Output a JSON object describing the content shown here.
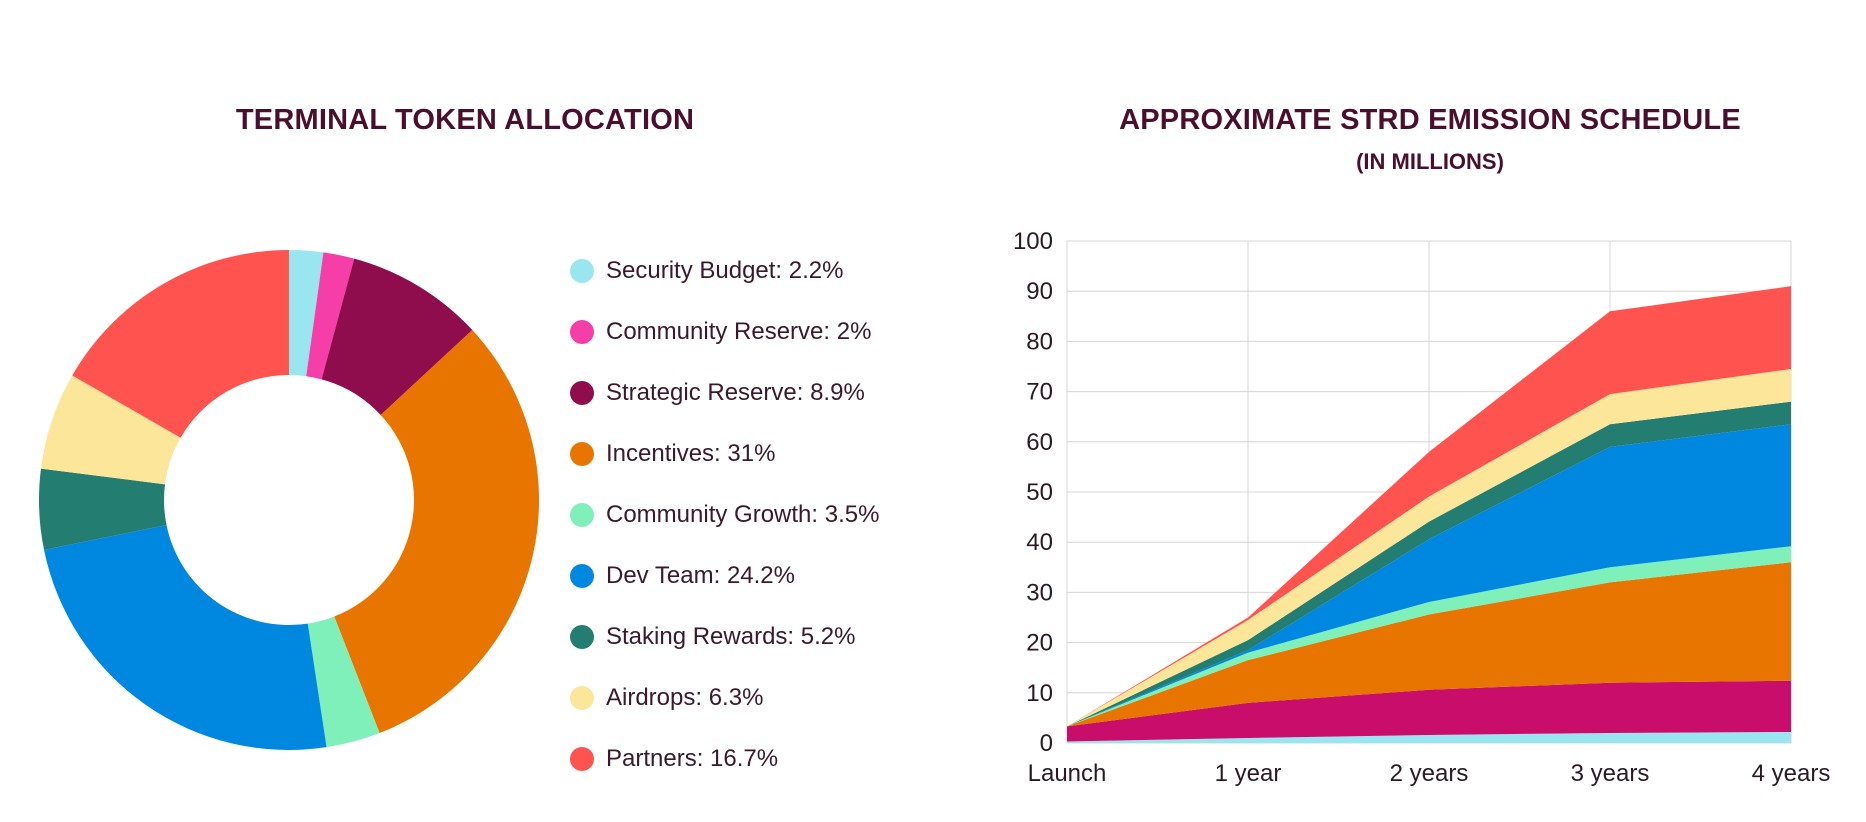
{
  "chart_data": [
    {
      "type": "pie",
      "title": "TERMINAL TOKEN ALLOCATION",
      "donut": true,
      "slices": [
        {
          "label": "Security Budget: 2.2%",
          "name": "Security Budget",
          "value": 2.2,
          "color": "#99e6f0"
        },
        {
          "label": "Community Reserve: 2%",
          "name": "Community Reserve",
          "value": 2,
          "color": "#f53ea8"
        },
        {
          "label": "Strategic Reserve: 8.9%",
          "name": "Strategic Reserve",
          "value": 8.9,
          "color": "#8f0d4d"
        },
        {
          "label": "Incentives: 31%",
          "name": "Incentives",
          "value": 31,
          "color": "#e87500"
        },
        {
          "label": "Community Growth: 3.5%",
          "name": "Community Growth",
          "value": 3.5,
          "color": "#7ff0b9"
        },
        {
          "label": "Dev Team: 24.2%",
          "name": "Dev Team",
          "value": 24.2,
          "color": "#0088e0"
        },
        {
          "label": "Staking Rewards: 5.2%",
          "name": "Staking Rewards",
          "value": 5.2,
          "color": "#247d71"
        },
        {
          "label": "Airdrops: 6.3%",
          "name": "Airdrops",
          "value": 6.3,
          "color": "#fce699"
        },
        {
          "label": "Partners: 16.7%",
          "name": "Partners",
          "value": 16.7,
          "color": "#ff5350"
        }
      ]
    },
    {
      "type": "area",
      "stacked": true,
      "title": "APPROXIMATE STRD EMISSION SCHEDULE",
      "subtitle": "(IN MILLIONS)",
      "categories": [
        "Launch",
        "1 year",
        "2 years",
        "3 years",
        "4 years"
      ],
      "yticks": [
        "0",
        "10",
        "20",
        "30",
        "40",
        "50",
        "60",
        "70",
        "80",
        "90",
        "100"
      ],
      "ylim": [
        0,
        100
      ],
      "grid": true,
      "series": [
        {
          "name": "Security Budget",
          "color": "#99e6f0",
          "values": [
            0.3,
            1.0,
            1.6,
            2.0,
            2.2
          ]
        },
        {
          "name": "Strategic Reserve",
          "color": "#c90d6a",
          "values": [
            3.0,
            7.0,
            9.0,
            10.0,
            10.2
          ]
        },
        {
          "name": "Incentives",
          "color": "#e87500",
          "values": [
            0,
            8.5,
            15,
            20,
            23.6
          ]
        },
        {
          "name": "Community Growth",
          "color": "#7ff0b9",
          "values": [
            0,
            1.5,
            2.5,
            3.0,
            3.2
          ]
        },
        {
          "name": "Dev Team",
          "color": "#0088e0",
          "values": [
            0,
            0.5,
            12.5,
            24,
            24.3
          ]
        },
        {
          "name": "Staking Rewards",
          "color": "#247d71",
          "values": [
            0,
            2.0,
            3.5,
            4.5,
            4.5
          ]
        },
        {
          "name": "Airdrops",
          "color": "#fce699",
          "values": [
            0,
            4.0,
            5.0,
            6.0,
            6.5
          ]
        },
        {
          "name": "Partners",
          "color": "#ff5350",
          "values": [
            0,
            0.5,
            8.9,
            16.5,
            16.5
          ]
        }
      ]
    }
  ]
}
